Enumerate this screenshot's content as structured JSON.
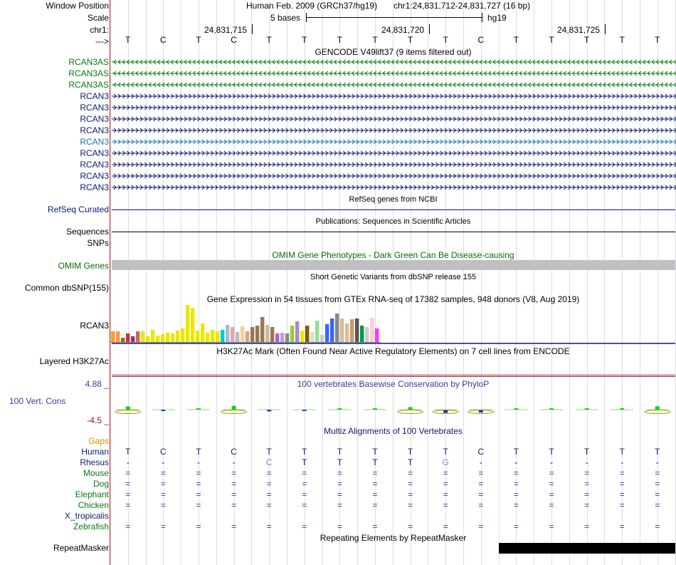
{
  "header": {
    "window_position_label": "Window Position",
    "assembly": "Human Feb. 2009 (GRCh37/hg19)",
    "position": "chr1:24,831,712-24,831,727 (16 bp)",
    "scale_label": "Scale",
    "scale_text": "5 bases",
    "db": "hg19",
    "chrom_label": "chr1:",
    "ticks": [
      "24,831,715",
      "24,831,720",
      "24,831,725"
    ],
    "strand_label": "--->"
  },
  "bases": [
    "T",
    "C",
    "T",
    "C",
    "T",
    "T",
    "T",
    "T",
    "T",
    "T",
    "C",
    "T",
    "T",
    "T",
    "T",
    "T"
  ],
  "gencode": {
    "title": "GENCODE V49lift37 (9 items filtered out)",
    "transcripts": [
      "RCAN3AS",
      "RCAN3AS",
      "RCAN3AS",
      "RCAN3",
      "RCAN3",
      "RCAN3",
      "RCAN3",
      "RCAN3",
      "RCAN3",
      "RCAN3",
      "RCAN3",
      "RCAN3"
    ],
    "strands": [
      "-",
      "-",
      "-",
      "+",
      "+",
      "+",
      "+",
      "+",
      "+",
      "+",
      "+",
      "+"
    ],
    "colors": [
      "#0b7a0b",
      "#0b7a0b",
      "#0b7a0b",
      "#0c1b6e",
      "#0c1b6e",
      "#0c1b6e",
      "#0c1b6e",
      "#1a7aa8",
      "#0c1b6e",
      "#0c1b6e",
      "#0c1b6e",
      "#0c1b6e"
    ]
  },
  "refseq": {
    "title": "RefSeq genes from NCBI",
    "label": "RefSeq Curated"
  },
  "publications": {
    "title": "Publications: Sequences in Scientific Articles",
    "label": "Sequences"
  },
  "snps_label": "SNPs",
  "omim": {
    "title": "OMIM Gene Phenotypes - Dark Green Can Be Disease-causing",
    "label": "OMIM Genes"
  },
  "dbsnp": {
    "title": "Short Genetic Variants from dbSNP release 155",
    "label": "Common dbSNP(155)"
  },
  "gtex": {
    "title": "Gene Expression in 54 tissues from GTEx RNA-seq of 17382 samples, 948 donors (V8, Aug 2019)",
    "label": "RCAN3",
    "values": [
      15,
      15,
      6,
      12,
      8,
      15,
      15,
      8,
      17,
      9,
      11,
      13,
      12,
      16,
      19,
      52,
      48,
      16,
      26,
      13,
      17,
      15,
      17,
      24,
      21,
      14,
      22,
      15,
      21,
      23,
      35,
      24,
      21,
      12,
      13,
      12,
      23,
      29,
      16,
      23,
      14,
      30,
      10,
      25,
      33,
      40,
      33,
      26,
      32,
      33,
      23,
      21,
      34,
      19
    ],
    "colors": [
      "#ff9933",
      "#ff9933",
      "#996633",
      "#cc3333",
      "#993366",
      "#cc6666",
      "#e8e800",
      "#e8e800",
      "#e8e800",
      "#e8e800",
      "#e8e800",
      "#e8e800",
      "#e8e800",
      "#e8e800",
      "#e8e800",
      "#e8e800",
      "#e8e800",
      "#e8e800",
      "#e8e800",
      "#e8e800",
      "#e8e800",
      "#e8e800",
      "#00cccc",
      "#aabbcc",
      "#ddaaaa",
      "#bbbbbb",
      "#ffcc99",
      "#ccaa88",
      "#997755",
      "#997755",
      "#997755",
      "#ccbb99",
      "#997755",
      "#aa66cc",
      "#cc99cc",
      "#888888",
      "#99cc33",
      "#aa88cc",
      "#e8e800",
      "#885500",
      "#ddddcc",
      "#99dd99",
      "#cccccc",
      "#3366ff",
      "#3366ff",
      "#888888",
      "#ddbb99",
      "#ddbb99",
      "#cc9966",
      "#555555",
      "#009944",
      "#cccccc",
      "#ffcccc",
      "#ff33ff"
    ]
  },
  "h3k27ac": {
    "title": "H3K27Ac Mark (Often Found Near Active Regulatory Elements) on 7 cell lines from ENCODE",
    "label": "Layered H3K27Ac"
  },
  "phylop": {
    "title": "100 vertebrates Basewise Conservation by PhyloP",
    "label": "100 Vert. Cons",
    "ymax": "4.88 _",
    "ymin": "-4.5 _",
    "values": [
      1.5,
      -0.3,
      0.4,
      1.8,
      -0.8,
      -0.6,
      0.5,
      0.4,
      1.2,
      -1.5,
      -1.3,
      0.3,
      0.6,
      0.6,
      0.7,
      1.6
    ]
  },
  "multiz": {
    "title": "Multiz Alignments of 100 Vertebrates",
    "gaps_label": "Gaps",
    "species": [
      {
        "name": "Human",
        "seq": [
          "T",
          "C",
          "T",
          "C",
          "T",
          "T",
          "T",
          "T",
          "T",
          "T",
          "C",
          "T",
          "T",
          "T",
          "T",
          "T"
        ]
      },
      {
        "name": "Rhesus",
        "seq": [
          "-",
          "-",
          "-",
          "-",
          "C",
          "T",
          "T",
          "T",
          "T",
          "G",
          "-",
          "-",
          "-",
          "-",
          "-",
          "-"
        ]
      },
      {
        "name": "Mouse",
        "seq": [
          "=",
          "=",
          "=",
          "=",
          "=",
          "=",
          "=",
          "=",
          "=",
          "=",
          "=",
          "=",
          "=",
          "=",
          "=",
          "="
        ]
      },
      {
        "name": "Dog",
        "seq": [
          "=",
          "=",
          "=",
          "=",
          "=",
          "=",
          "=",
          "=",
          "=",
          "=",
          "=",
          "=",
          "=",
          "=",
          "=",
          "="
        ]
      },
      {
        "name": "Elephant",
        "seq": [
          "=",
          "=",
          "=",
          "=",
          "=",
          "=",
          "=",
          "=",
          "=",
          "=",
          "=",
          "=",
          "=",
          "=",
          "=",
          "="
        ]
      },
      {
        "name": "Chicken",
        "seq": [
          "=",
          "=",
          "=",
          "=",
          "=",
          "=",
          "=",
          "=",
          "=",
          "=",
          "=",
          "=",
          "=",
          "=",
          "=",
          "="
        ]
      },
      {
        "name": "X_tropicalis",
        "seq": []
      },
      {
        "name": "Zebrafish",
        "seq": [
          "=",
          "=",
          "=",
          "=",
          "=",
          "=",
          "=",
          "=",
          "=",
          "=",
          "=",
          "=",
          "=",
          "=",
          "=",
          "="
        ]
      }
    ]
  },
  "repeatmasker": {
    "title": "Repeating Elements by RepeatMasker",
    "label": "RepeatMasker"
  },
  "colors": {
    "gencode_green": "#0b7a0b",
    "gencode_blue": "#0c1b6e",
    "gencode_selected": "#1a7aa8",
    "phylop_pos": "#00dd00",
    "phylop_neg": "#2222cc",
    "omim_bar": "#c0c0c0",
    "h3k27ac_line": "#c06070",
    "gaps_orange": "#e08a00",
    "dark_red": "#8b1a1a"
  }
}
